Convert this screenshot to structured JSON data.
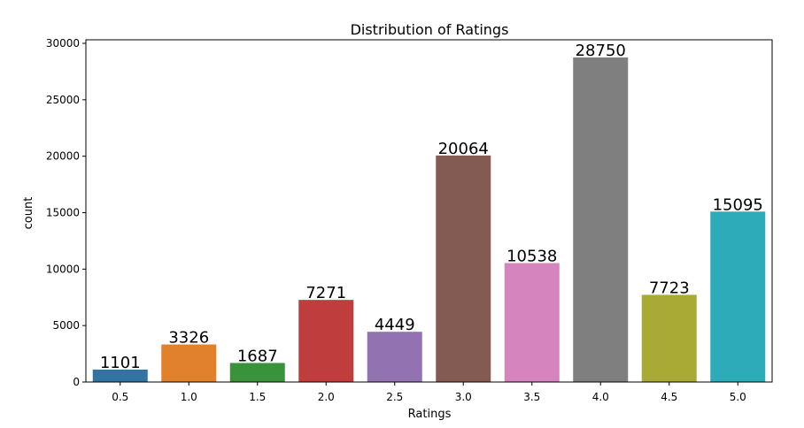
{
  "chart_data": {
    "type": "bar",
    "title": "Distribution of Ratings",
    "xlabel": "Ratings",
    "ylabel": "count",
    "categories": [
      "0.5",
      "1.0",
      "1.5",
      "2.0",
      "2.5",
      "3.0",
      "3.5",
      "4.0",
      "4.5",
      "5.0"
    ],
    "values": [
      1101,
      3326,
      1687,
      7271,
      4449,
      20064,
      10538,
      28750,
      7723,
      15095
    ],
    "colors": [
      "#3274a1",
      "#e1812c",
      "#3a923a",
      "#c03d3e",
      "#9372b2",
      "#845b53",
      "#d684bd",
      "#7f7f7f",
      "#a9aa35",
      "#2eabb8"
    ],
    "ylim": [
      0,
      30000
    ],
    "yticks": [
      0,
      5000,
      10000,
      15000,
      20000,
      25000,
      30000
    ],
    "grid": false,
    "legend": "none"
  }
}
